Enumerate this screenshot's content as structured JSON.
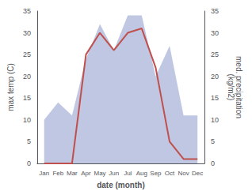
{
  "chart_data": {
    "type": "line",
    "categories": [
      "Jan",
      "Feb",
      "Mar",
      "Apr",
      "May",
      "Jun",
      "Jul",
      "Aug",
      "Sep",
      "Oct",
      "Nov",
      "Dec"
    ],
    "series": [
      {
        "type": "area",
        "axis": "y2",
        "color": "#aab4d8",
        "values": [
          10.0,
          14.0,
          11.0,
          24.0,
          32.0,
          26.0,
          34.0,
          34.0,
          20.0,
          27.0,
          11.0,
          11.0
        ]
      },
      {
        "type": "line",
        "color": "#c0504d",
        "values": [
          0.0,
          0.0,
          0.0,
          25.0,
          30.0,
          26.0,
          30.0,
          31.0,
          22.0,
          5.0,
          1.0,
          1.0
        ]
      }
    ],
    "xlabel": "date (month)",
    "ylabel": "max temp (C)",
    "y2label": "med. precipitation\n(kg/m2)",
    "ylim": [
      0,
      35
    ],
    "yticks": [
      0,
      5,
      10,
      15,
      20,
      25,
      30,
      35
    ],
    "y2lim": [
      0,
      35
    ],
    "y2ticks": [
      0,
      5,
      10,
      15,
      20,
      25,
      30,
      35
    ],
    "grid": false
  }
}
